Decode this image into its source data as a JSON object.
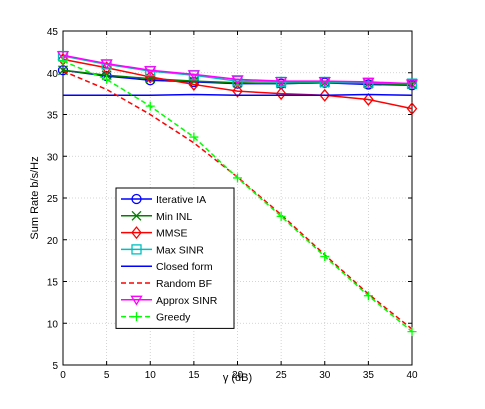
{
  "chart_data": {
    "type": "line",
    "title": "",
    "xlabel": "γ (dB)",
    "ylabel": "Sum Rate b/s/Hz",
    "xlim": [
      0,
      40
    ],
    "ylim": [
      5,
      45
    ],
    "xticks": [
      0,
      5,
      10,
      15,
      20,
      25,
      30,
      35,
      40
    ],
    "yticks": [
      5,
      10,
      15,
      20,
      25,
      30,
      35,
      40,
      45
    ],
    "grid": true,
    "legend_position": "bottom-left",
    "x": [
      0,
      5,
      10,
      15,
      20,
      25,
      30,
      35,
      40
    ],
    "series": [
      {
        "name": "Iterative IA",
        "color": "#0000ff",
        "line": "solid",
        "marker": "circle",
        "values": [
          40.3,
          39.6,
          39.1,
          38.9,
          38.7,
          38.7,
          38.8,
          38.6,
          38.5
        ]
      },
      {
        "name": "Min INL",
        "color": "#007f00",
        "line": "solid",
        "marker": "x",
        "values": [
          40.3,
          39.7,
          39.3,
          39.0,
          38.8,
          38.7,
          38.8,
          38.7,
          38.6
        ]
      },
      {
        "name": "MMSE",
        "color": "#ff0000",
        "line": "solid",
        "marker": "diamond",
        "values": [
          41.6,
          40.6,
          39.5,
          38.6,
          37.8,
          37.5,
          37.3,
          36.8,
          35.7
        ]
      },
      {
        "name": "Max SINR",
        "color": "#00bfbf",
        "line": "solid",
        "marker": "square",
        "values": [
          42.0,
          41.0,
          40.2,
          39.7,
          39.0,
          38.9,
          38.9,
          38.8,
          38.7
        ]
      },
      {
        "name": "Closed form",
        "color": "#0000ff",
        "line": "solid",
        "marker": "none",
        "values": [
          37.3,
          37.3,
          37.3,
          37.4,
          37.3,
          37.3,
          37.3,
          37.4,
          37.3
        ]
      },
      {
        "name": "Random BF",
        "color": "#ff0000",
        "line": "dashed",
        "marker": "none",
        "values": [
          40.2,
          38.0,
          35.0,
          31.6,
          27.5,
          23.0,
          18.2,
          13.5,
          9.3
        ]
      },
      {
        "name": "Approx SINR",
        "color": "#ff00ff",
        "line": "solid",
        "marker": "triangle-down",
        "values": [
          42.1,
          41.1,
          40.3,
          39.8,
          39.2,
          39.0,
          39.0,
          38.9,
          38.7
        ]
      },
      {
        "name": "Greedy",
        "color": "#00ff00",
        "line": "dashed",
        "marker": "plus",
        "values": [
          41.4,
          39.2,
          36.0,
          32.3,
          27.4,
          22.8,
          18.0,
          13.3,
          9.0
        ]
      }
    ]
  }
}
